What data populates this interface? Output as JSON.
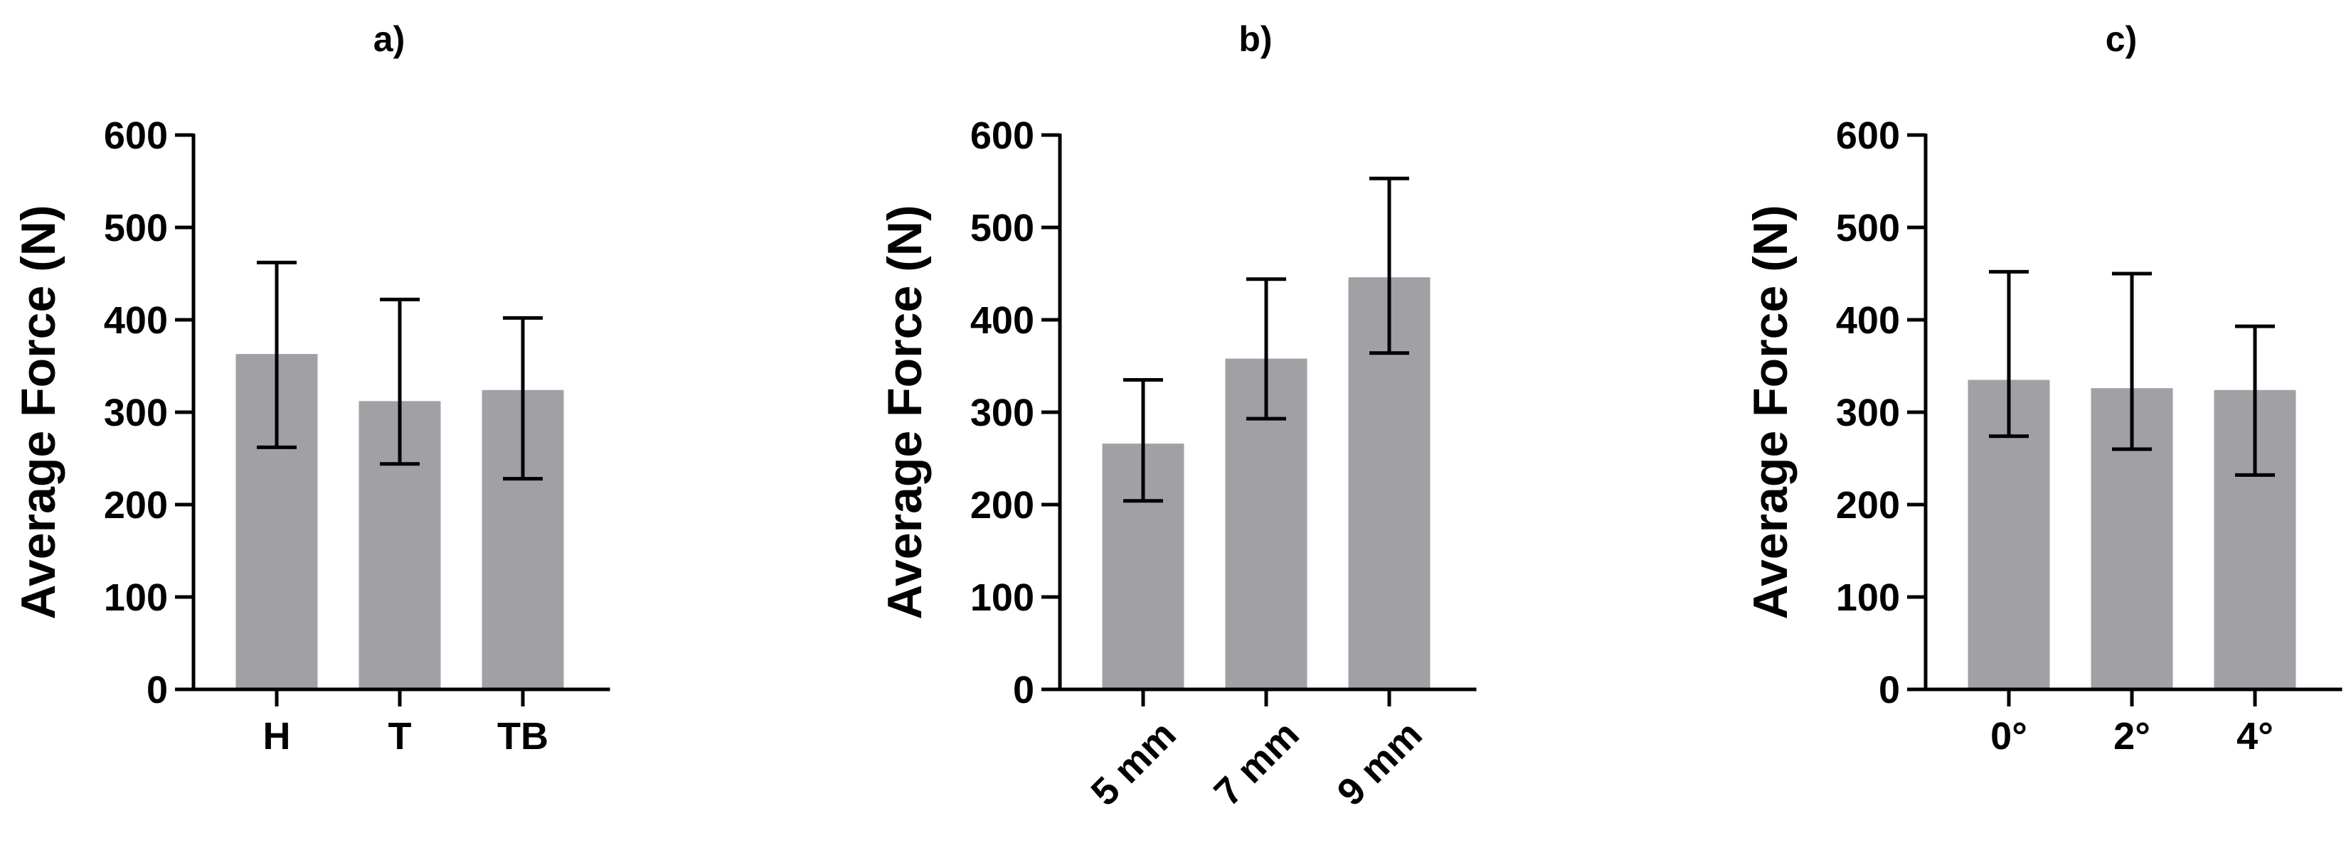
{
  "chart_data": [
    {
      "type": "bar",
      "panel_label": "a)",
      "ylabel": "Average Force (N)",
      "xlabel": "",
      "ylim": [
        0,
        600
      ],
      "yticks": [
        0,
        100,
        200,
        300,
        400,
        500,
        600
      ],
      "categories": [
        "H",
        "T",
        "TB"
      ],
      "x_label_rotation": 0,
      "bar_color": "#a0a0a5",
      "series": [
        {
          "values": [
            363,
            312,
            324
          ],
          "error_low": [
            262,
            244,
            228
          ],
          "error_high": [
            462,
            422,
            402
          ]
        }
      ]
    },
    {
      "type": "bar",
      "panel_label": "b)",
      "ylabel": "Average Force (N)",
      "xlabel": "",
      "ylim": [
        0,
        600
      ],
      "yticks": [
        0,
        100,
        200,
        300,
        400,
        500,
        600
      ],
      "categories": [
        "5 mm",
        "7 mm",
        "9 mm"
      ],
      "x_label_rotation": -45,
      "bar_color": "#a0a0a5",
      "series": [
        {
          "values": [
            266,
            358,
            446
          ],
          "error_low": [
            204,
            293,
            364
          ],
          "error_high": [
            335,
            444,
            553
          ]
        }
      ]
    },
    {
      "type": "bar",
      "panel_label": "c)",
      "ylabel": "Average Force (N)",
      "xlabel": "",
      "ylim": [
        0,
        600
      ],
      "yticks": [
        0,
        100,
        200,
        300,
        400,
        500,
        600
      ],
      "categories": [
        "0°",
        "2°",
        "4°"
      ],
      "x_label_rotation": 0,
      "bar_color": "#a0a0a5",
      "series": [
        {
          "values": [
            335,
            326,
            324
          ],
          "error_low": [
            274,
            260,
            232
          ],
          "error_high": [
            452,
            450,
            393
          ]
        }
      ]
    }
  ]
}
